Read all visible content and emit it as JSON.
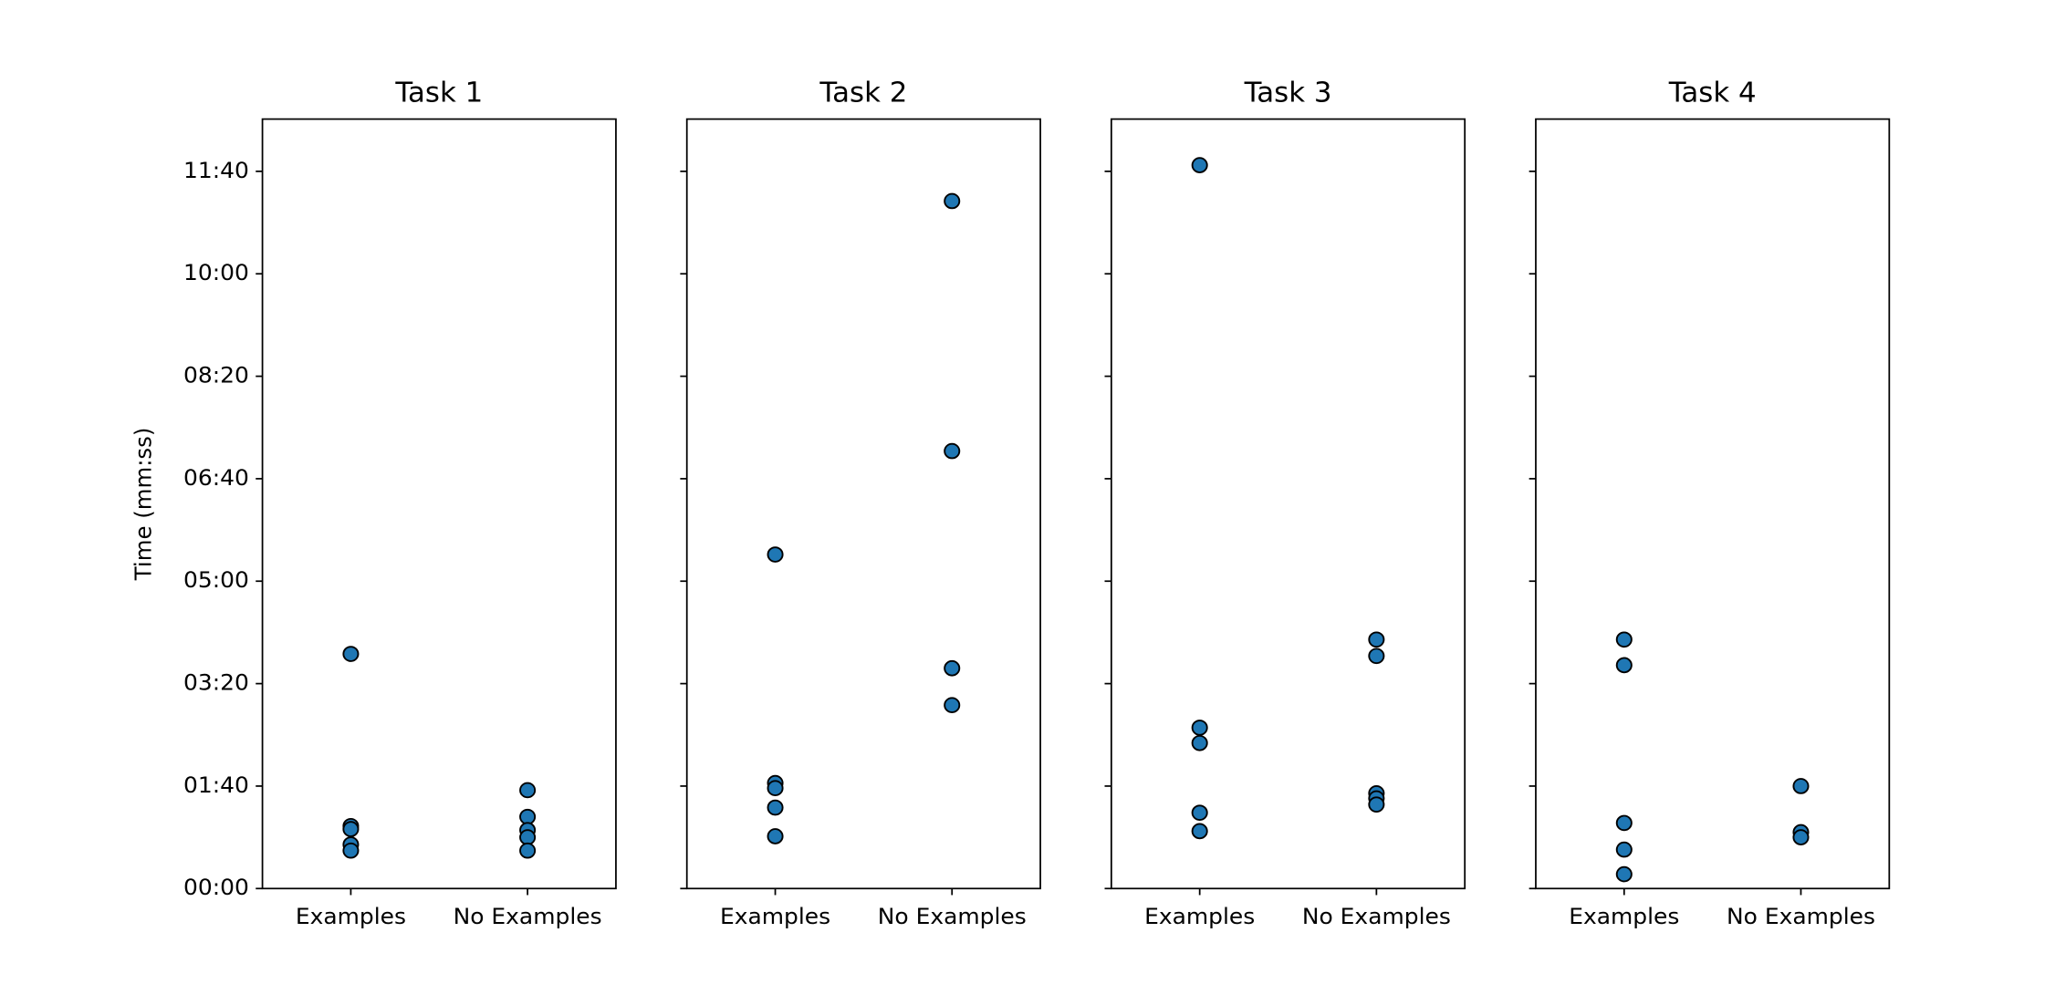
{
  "chart_data": [
    {
      "type": "scatter",
      "title": "Task 1",
      "ylabel": "Time (mm:ss)",
      "color": "#1f77b4",
      "categories": [
        "Examples",
        "No Examples"
      ],
      "values": [
        [
          229,
          61,
          58,
          43,
          37
        ],
        [
          96,
          70,
          57,
          50,
          37
        ]
      ],
      "ylim": [
        0,
        751
      ],
      "yticks": [
        {
          "value": 0,
          "label": "00:00"
        },
        {
          "value": 100,
          "label": "01:40"
        },
        {
          "value": 200,
          "label": "03:20"
        },
        {
          "value": 300,
          "label": "05:00"
        },
        {
          "value": 400,
          "label": "06:40"
        },
        {
          "value": 500,
          "label": "08:20"
        },
        {
          "value": 600,
          "label": "10:00"
        },
        {
          "value": 700,
          "label": "11:40"
        }
      ]
    },
    {
      "type": "scatter",
      "title": "Task 2",
      "color": "#1f77b4",
      "sharey": true,
      "categories": [
        "Examples",
        "No Examples"
      ],
      "values": [
        [
          326,
          103,
          98,
          79,
          51
        ],
        [
          671,
          427,
          215,
          179
        ]
      ]
    },
    {
      "type": "scatter",
      "title": "Task 3",
      "color": "#1f77b4",
      "sharey": true,
      "categories": [
        "Examples",
        "No Examples"
      ],
      "values": [
        [
          706,
          157,
          142,
          74,
          56
        ],
        [
          243,
          227,
          93,
          88,
          82
        ]
      ]
    },
    {
      "type": "scatter",
      "title": "Task 4",
      "color": "#1f77b4",
      "sharey": true,
      "categories": [
        "Examples",
        "No Examples"
      ],
      "values": [
        [
          243,
          218,
          64,
          38,
          14
        ],
        [
          100,
          55,
          50
        ]
      ]
    }
  ]
}
